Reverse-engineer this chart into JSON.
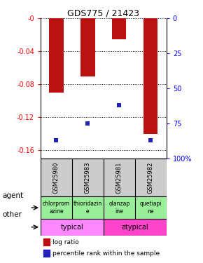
{
  "title": "GDS775 / 21423",
  "samples": [
    "GSM25980",
    "GSM25983",
    "GSM25981",
    "GSM25982"
  ],
  "log_ratios": [
    -0.09,
    -0.07,
    -0.025,
    -0.14
  ],
  "percentile_ranks": [
    0.13,
    0.25,
    0.38,
    0.13
  ],
  "ylim_left": [
    -0.17,
    0.0
  ],
  "ylim_right": [
    0,
    100
  ],
  "yticks_left": [
    0.0,
    -0.04,
    -0.08,
    -0.12,
    -0.16
  ],
  "yticks_right": [
    100,
    75,
    50,
    25,
    0
  ],
  "ytick_labels_left": [
    "-0",
    "-0.04",
    "-0.08",
    "-0.12",
    "-0.16"
  ],
  "ytick_labels_right": [
    "100%",
    "75",
    "50",
    "25",
    "0"
  ],
  "agent_labels": [
    "chlorprom\nazine",
    "thioridazin\ne",
    "olanzap\nine",
    "quetiapi\nne"
  ],
  "other_labels": [
    "typical",
    "atypical"
  ],
  "bar_color": "#BB1111",
  "marker_color": "#2222BB",
  "bg_color": "#CCCCCC",
  "agent_bg_color": "#99EE99",
  "typical_color": "#FF88FF",
  "atypical_color": "#FF44CC",
  "plot_bg_color": "#FFFFFF",
  "legend_items": [
    "log ratio",
    "percentile rank within the sample"
  ],
  "bar_width": 0.45
}
